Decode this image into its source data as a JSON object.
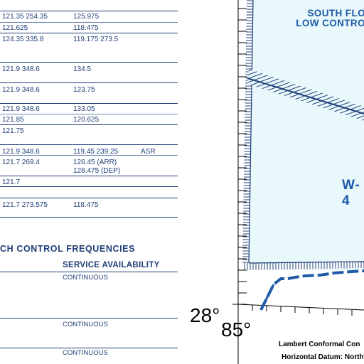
{
  "frequency_rows": [
    {
      "c1": "121.35  254.35",
      "c2": "125.975",
      "c3": ""
    },
    {
      "c1": "121.625",
      "c2": "118.475",
      "c3": ""
    },
    {
      "c1": "124.35  335.8",
      "c2": "119.175  273.5",
      "c3": ""
    },
    {
      "c1": "121.9  348.6",
      "c2": "134.5",
      "c3": ""
    },
    {
      "c1": "121.9  348.6",
      "c2": "123.75",
      "c3": ""
    },
    {
      "c1": "121.9  348.6",
      "c2": "133.05",
      "c3": ""
    },
    {
      "c1": "121.85",
      "c2": "120.625",
      "c3": ""
    },
    {
      "c1": "121.75",
      "c2": "",
      "c3": ""
    },
    {
      "c1": "121.9  348.6",
      "c2": "119.45  239.25",
      "c3": "ASR"
    },
    {
      "c1": "121.7  269.4",
      "c2": "126.45   (ARR)",
      "c3": ""
    },
    {
      "c1": "",
      "c2": "128.475  (DEP)",
      "c3": ""
    },
    {
      "c1": "121.7",
      "c2": "",
      "c3": ""
    },
    {
      "c1": "121.7  273.575",
      "c2": "118.475",
      "c3": ""
    }
  ],
  "approach_section": {
    "title": "CH  CONTROL  FREQUENCIES",
    "service_header": "SERVICE  AVAILABILITY",
    "services": [
      "CONTINUOUS",
      "CONTINUOUS",
      "CONTINUOUS"
    ]
  },
  "map": {
    "title_line1": "SOUTH FLO",
    "title_line2": "LOW CONTRO",
    "area_label": "W-4",
    "lat_label": "28°",
    "lon_label": "85°",
    "projection_line1": "Lambert Conformal Con",
    "projection_line2": "Horizontal Datum: North A",
    "colors": {
      "ink": "#1f3f78",
      "area_fill": "#e8f8fb",
      "label_blue": "#1f5aa8"
    }
  }
}
